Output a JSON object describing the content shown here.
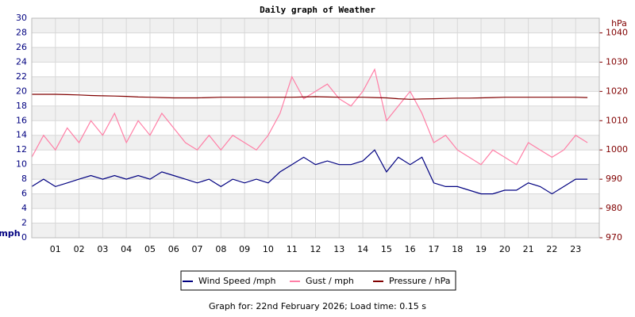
{
  "chart_data": {
    "type": "line",
    "title": "Daily graph of Weather",
    "y_label": "mph",
    "y2_label": "hPa",
    "footer": "Graph for: 22nd February 2026; Load time: 0.15 s",
    "x": [
      0,
      0.5,
      1,
      1.5,
      2,
      2.5,
      3,
      3.5,
      4,
      4.5,
      5,
      5.5,
      6,
      6.5,
      7,
      7.5,
      8,
      8.5,
      9,
      9.5,
      10,
      10.5,
      11,
      11.5,
      12,
      12.5,
      13,
      13.5,
      14,
      14.5,
      15,
      15.5,
      16,
      16.5,
      17,
      17.5,
      18,
      18.5,
      19,
      19.5,
      20,
      20.5,
      21,
      21.5,
      22,
      22.5,
      23,
      23.5
    ],
    "xlim": [
      0,
      24
    ],
    "xticks": [
      {
        "value": 1,
        "label": "01"
      },
      {
        "value": 2,
        "label": "02"
      },
      {
        "value": 3,
        "label": "03"
      },
      {
        "value": 4,
        "label": "04"
      },
      {
        "value": 5,
        "label": "05"
      },
      {
        "value": 6,
        "label": "06"
      },
      {
        "value": 7,
        "label": "07"
      },
      {
        "value": 8,
        "label": "08"
      },
      {
        "value": 9,
        "label": "09"
      },
      {
        "value": 10,
        "label": "10"
      },
      {
        "value": 11,
        "label": "11"
      },
      {
        "value": 12,
        "label": "12"
      },
      {
        "value": 13,
        "label": "13"
      },
      {
        "value": 14,
        "label": "14"
      },
      {
        "value": 15,
        "label": "15"
      },
      {
        "value": 16,
        "label": "16"
      },
      {
        "value": 17,
        "label": "17"
      },
      {
        "value": 18,
        "label": "18"
      },
      {
        "value": 19,
        "label": "19"
      },
      {
        "value": 20,
        "label": "20"
      },
      {
        "value": 21,
        "label": "21"
      },
      {
        "value": 22,
        "label": "22"
      },
      {
        "value": 23,
        "label": "23"
      }
    ],
    "ylim": [
      0,
      30
    ],
    "yticks": [
      0,
      2,
      4,
      6,
      8,
      10,
      12,
      14,
      16,
      18,
      20,
      22,
      24,
      26,
      28,
      30
    ],
    "y2lim": [
      970,
      1045
    ],
    "y2ticks": [
      970,
      980,
      990,
      1000,
      1010,
      1020,
      1030,
      1040
    ],
    "grid": true,
    "series": [
      {
        "name": "Wind Speed /mph",
        "color": "#000080",
        "values": [
          7,
          8,
          7,
          7.5,
          8,
          8.5,
          8,
          8.5,
          8,
          8.5,
          8,
          9,
          8.5,
          8,
          7.5,
          8,
          7,
          8,
          7.5,
          8,
          7.5,
          9,
          10,
          11,
          10,
          10.5,
          10,
          10,
          10.5,
          12,
          9,
          11,
          10,
          11,
          7.5,
          7,
          7,
          6.5,
          6,
          6,
          6.5,
          6.5,
          7.5,
          7,
          6,
          7,
          8,
          8
        ]
      },
      {
        "name": "Gust / mph",
        "color": "#ff7fa6",
        "values": [
          11,
          14,
          12,
          15,
          13,
          16,
          14,
          17,
          13,
          16,
          14,
          17,
          15,
          13,
          12,
          14,
          12,
          14,
          13,
          12,
          14,
          17,
          22,
          19,
          20,
          21,
          19,
          18,
          20,
          23,
          16,
          18,
          20,
          17,
          13,
          14,
          12,
          11,
          10,
          12,
          11,
          10,
          13,
          12,
          11,
          12,
          14,
          13
        ]
      },
      {
        "name": "Pressure / hPa",
        "color": "#800000",
        "axis": "y2",
        "values": [
          1019,
          1019,
          1019,
          1018.9,
          1018.8,
          1018.6,
          1018.5,
          1018.4,
          1018.3,
          1018.1,
          1018,
          1017.9,
          1017.8,
          1017.8,
          1017.8,
          1017.9,
          1018,
          1018,
          1018,
          1018,
          1018,
          1018,
          1018,
          1018.1,
          1018.2,
          1018.1,
          1018,
          1018,
          1018,
          1017.9,
          1017.8,
          1017.5,
          1017.3,
          1017.4,
          1017.5,
          1017.6,
          1017.7,
          1017.7,
          1017.8,
          1017.9,
          1018,
          1018,
          1018,
          1018,
          1018,
          1018,
          1018,
          1017.9
        ]
      }
    ]
  }
}
